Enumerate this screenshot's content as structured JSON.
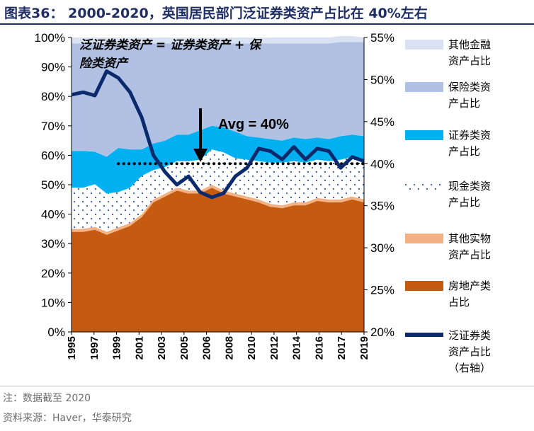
{
  "title": "图表36：  2000-2020，英国居民部门泛证券类资产占比在 40%左右",
  "footnote": "注：数据截至 2020",
  "source": "资料来源：Haver，华泰研究",
  "colors": {
    "title": "#1f2f66",
    "other_financial": "#d9e2f3",
    "insurance": "#b0c1e3",
    "securities": "#00b0f0",
    "cash": "#ffffff",
    "cash_dots": "#2e5597",
    "other_physical": "#f4b183",
    "real_estate": "#c55a11",
    "line": "#0b2a6b"
  },
  "chart_data": {
    "type": "area",
    "x": [
      1995,
      1996,
      1997,
      1998,
      1999,
      2000,
      2001,
      2002,
      2003,
      2004,
      2005,
      2006,
      2007,
      2008,
      2009,
      2010,
      2011,
      2012,
      2013,
      2014,
      2015,
      2016,
      2017,
      2018,
      2019,
      2020
    ],
    "xtick_labels": [
      "1995",
      "1997",
      "1999",
      "2001",
      "2003",
      "2005",
      "2006",
      "2008",
      "2010",
      "2012",
      "2014",
      "2016",
      "2017",
      "2019"
    ],
    "left_ticks": [
      "0%",
      "10%",
      "20%",
      "30%",
      "40%",
      "50%",
      "60%",
      "70%",
      "80%",
      "90%",
      "100%"
    ],
    "right_ticks": [
      "20%",
      "25%",
      "30%",
      "35%",
      "40%",
      "45%",
      "50%",
      "55%"
    ],
    "ylim_left": [
      0,
      100
    ],
    "ylim_right": [
      20,
      55
    ],
    "series": [
      {
        "name": "房地产类占比",
        "key": "real_estate",
        "values": [
          34.0,
          34.0,
          34.7,
          33.0,
          34.5,
          36.0,
          39.0,
          44.0,
          46.0,
          48.0,
          47.0,
          47.0,
          49.0,
          47.0,
          46.0,
          45.0,
          44.0,
          42.5,
          42.0,
          43.0,
          43.0,
          44.5,
          44.0,
          44.0,
          45.0,
          44.0
        ]
      },
      {
        "name": "其他实物资产占比",
        "key": "other_physical",
        "values": [
          1.0,
          1.0,
          1.0,
          1.0,
          1.0,
          1.0,
          1.0,
          1.0,
          1.0,
          1.0,
          1.0,
          1.0,
          1.0,
          1.0,
          1.0,
          1.0,
          1.0,
          1.0,
          1.0,
          1.0,
          1.0,
          1.0,
          1.0,
          1.0,
          1.0,
          1.0
        ]
      },
      {
        "name": "现金类资产占比",
        "key": "cash",
        "values": [
          14.0,
          14.0,
          14.5,
          13.0,
          12.0,
          12.0,
          13.0,
          10.0,
          9.0,
          9.0,
          10.0,
          10.5,
          12.0,
          13.0,
          12.0,
          12.5,
          13.0,
          14.0,
          14.5,
          14.0,
          13.5,
          13.0,
          13.0,
          13.5,
          13.5,
          13.5
        ]
      },
      {
        "name": "证券类资产占比",
        "key": "securities",
        "values": [
          12.5,
          12.5,
          11.0,
          12.5,
          15.0,
          13.0,
          9.0,
          9.0,
          9.0,
          9.0,
          9.0,
          10.0,
          8.0,
          8.5,
          9.0,
          8.0,
          8.0,
          8.0,
          7.5,
          8.0,
          8.0,
          7.5,
          7.5,
          8.0,
          7.5,
          8.0
        ]
      },
      {
        "name": "保险类资产占比",
        "key": "insurance",
        "values": [
          36.5,
          36.5,
          36.8,
          38.5,
          35.5,
          36.0,
          36.0,
          34.0,
          33.0,
          31.0,
          31.0,
          29.5,
          28.0,
          28.5,
          30.0,
          31.5,
          32.0,
          32.5,
          33.0,
          32.0,
          32.5,
          32.0,
          32.5,
          32.0,
          31.5,
          32.0
        ]
      },
      {
        "name": "其他金融资产占比",
        "key": "other_financial",
        "values": [
          2.0,
          2.0,
          2.0,
          2.0,
          2.0,
          2.0,
          2.0,
          2.0,
          2.0,
          2.0,
          2.0,
          2.0,
          2.0,
          2.0,
          2.0,
          2.0,
          2.0,
          2.0,
          2.0,
          2.0,
          2.0,
          2.0,
          2.0,
          2.0,
          2.0,
          1.5
        ]
      }
    ],
    "line_series": {
      "name": "泛证券类资产占比（右轴）",
      "values": [
        48.2,
        48.5,
        48.1,
        51.0,
        50.2,
        48.5,
        45.5,
        41.0,
        39.0,
        37.5,
        38.5,
        36.6,
        36.0,
        36.5,
        38.5,
        39.5,
        41.8,
        41.5,
        40.5,
        42.0,
        40.5,
        41.8,
        41.5,
        39.5,
        40.8,
        40.3
      ]
    },
    "avg_value": 40,
    "avg_label": "Avg = 40%",
    "annotation": [
      "泛证券类资产 = 证券类资产 + 保",
      "险类资产"
    ],
    "legend": [
      {
        "key": "other_financial",
        "lines": [
          "其他金融",
          "资产占比"
        ]
      },
      {
        "key": "insurance",
        "lines": [
          "保险类资",
          "产占比"
        ]
      },
      {
        "key": "securities",
        "lines": [
          "证券类资",
          "产占比"
        ]
      },
      {
        "key": "cash",
        "lines": [
          "现金类资",
          "产占比"
        ]
      },
      {
        "key": "other_physical",
        "lines": [
          "其他实物",
          "资产占比"
        ]
      },
      {
        "key": "real_estate",
        "lines": [
          "房地产类",
          "占比"
        ]
      },
      {
        "key": "line",
        "lines": [
          "泛证券类",
          "资产占比",
          "（右轴）"
        ]
      }
    ],
    "legend_position": "right",
    "grid": false
  }
}
